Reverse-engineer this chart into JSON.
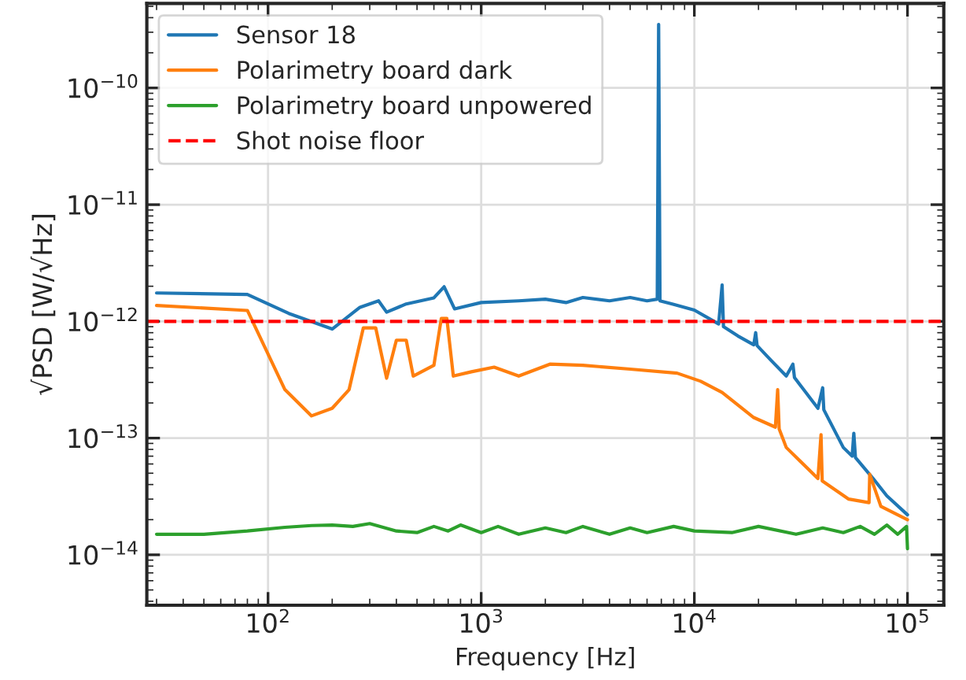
{
  "chart_data": {
    "type": "line",
    "xlabel": "Frequency [Hz]",
    "ylabel": "√PSD [W/√Hz]",
    "log": "xy",
    "grid": true,
    "legend": "top left",
    "xlim": [
      27,
      148000
    ],
    "ylim": [
      3.7e-15,
      5.3e-10
    ],
    "xticks": [
      {
        "value": 100,
        "label": "10$^{2}$"
      },
      {
        "value": 1000,
        "label": "10$^{3}$"
      },
      {
        "value": 10000,
        "label": "10$^{4}$"
      },
      {
        "value": 100000,
        "label": "10$^{5}$"
      }
    ],
    "yticks": [
      {
        "value": 1e-14,
        "label": "10$^{−14}$"
      },
      {
        "value": 1e-13,
        "label": "10$^{−13}$"
      },
      {
        "value": 1e-12,
        "label": "10$^{−12}$"
      },
      {
        "value": 1e-11,
        "label": "10$^{−11}$"
      },
      {
        "value": 1e-10,
        "label": "10$^{−10}$"
      }
    ],
    "series": [
      {
        "name": "Sensor 18",
        "color": "#1f77b4",
        "x": [
          30,
          80,
          125,
          200,
          270,
          330,
          360,
          445,
          600,
          670,
          750,
          1000,
          1500,
          2000,
          2500,
          3000,
          4000,
          5000,
          6000,
          6700,
          6800,
          6900,
          8000,
          10000,
          13000,
          13500,
          13700,
          16000,
          19000,
          19400,
          19700,
          23000,
          27000,
          29000,
          29500,
          38000,
          40000,
          40500,
          50000,
          55000,
          56000,
          57000,
          69000,
          80000,
          100000
        ],
        "values": [
          1.75e-12,
          1.7e-12,
          1.17e-12,
          8.6e-13,
          1.32e-12,
          1.5e-12,
          1.2e-12,
          1.41e-12,
          1.59e-12,
          1.98e-12,
          1.28e-12,
          1.45e-12,
          1.5e-12,
          1.55e-12,
          1.45e-12,
          1.6e-12,
          1.5e-12,
          1.6e-12,
          1.5e-12,
          1.55e-12,
          3.5e-10,
          1.5e-12,
          1.4e-12,
          1.25e-12,
          9.5e-13,
          2.05e-12,
          9e-13,
          7.5e-13,
          6.3e-13,
          8e-13,
          6.2e-13,
          4.6e-13,
          3.4e-13,
          4.3e-13,
          3.3e-13,
          1.8e-13,
          2.7e-13,
          1.75e-13,
          8.3e-14,
          7e-14,
          1.1e-13,
          6.8e-14,
          4.5e-14,
          3.2e-14,
          2.2e-14
        ]
      },
      {
        "name": "Polarimetry board dark",
        "color": "#ff7f0e",
        "x": [
          30,
          80,
          120,
          160,
          200,
          240,
          280,
          320,
          360,
          400,
          445,
          480,
          600,
          650,
          690,
          740,
          900,
          1150,
          1500,
          2100,
          3000,
          5000,
          8300,
          10700,
          13500,
          19000,
          24000,
          24600,
          25000,
          27000,
          38000,
          39300,
          39800,
          53000,
          66000,
          66500,
          75000,
          100000
        ],
        "values": [
          1.37e-12,
          1.24e-12,
          2.6e-13,
          1.55e-13,
          1.8e-13,
          2.6e-13,
          8.8e-13,
          8.8e-13,
          3.26e-13,
          6.9e-13,
          6.9e-13,
          3.4e-13,
          4.2e-13,
          1.06e-12,
          1.06e-12,
          3.4e-13,
          3.7e-13,
          4.05e-13,
          3.4e-13,
          4.3e-13,
          4.2e-13,
          3.9e-13,
          3.6e-13,
          3.07e-13,
          2.46e-13,
          1.5e-13,
          1.24e-13,
          2.6e-13,
          1.2e-13,
          8.3e-14,
          4.5e-14,
          1.07e-13,
          4.3e-14,
          3e-14,
          2.8e-14,
          4.9e-14,
          2.6e-14,
          2e-14
        ]
      },
      {
        "name": "Polarimetry board unpowered",
        "color": "#2ca02c",
        "x": [
          30,
          50,
          80,
          120,
          160,
          200,
          250,
          300,
          400,
          500,
          600,
          700,
          800,
          1000,
          1200,
          1500,
          2000,
          2500,
          3000,
          4000,
          5000,
          6000,
          8000,
          10000,
          15000,
          20000,
          30000,
          40000,
          50000,
          60000,
          70000,
          80000,
          90000,
          99000,
          100000
        ],
        "values": [
          1.5e-14,
          1.5e-14,
          1.6e-14,
          1.72e-14,
          1.78e-14,
          1.8e-14,
          1.75e-14,
          1.85e-14,
          1.6e-14,
          1.55e-14,
          1.75e-14,
          1.6e-14,
          1.8e-14,
          1.55e-14,
          1.75e-14,
          1.5e-14,
          1.7e-14,
          1.55e-14,
          1.75e-14,
          1.5e-14,
          1.7e-14,
          1.55e-14,
          1.75e-14,
          1.6e-14,
          1.55e-14,
          1.75e-14,
          1.5e-14,
          1.7e-14,
          1.55e-14,
          1.75e-14,
          1.5e-14,
          1.8e-14,
          1.5e-14,
          1.75e-14,
          1.13e-14
        ]
      }
    ],
    "ref_lines": [
      {
        "axis": "y",
        "value": 1e-12,
        "label": "Shot noise floor",
        "color": "#ff0000",
        "line_style": "dashed"
      }
    ]
  }
}
